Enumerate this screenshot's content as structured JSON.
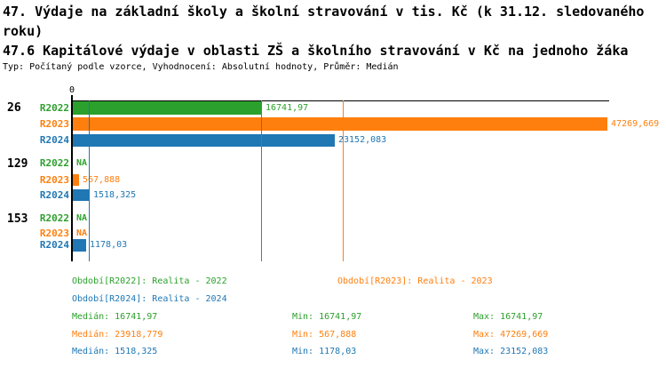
{
  "header": {
    "title": "47. Výdaje na základní školy a školní stravování v tis. Kč (k 31.12. sledovaného roku)",
    "subtitle": "47.6 Kapitálové výdaje v oblasti ZŠ a školního stravování v Kč na jednoho žáka",
    "meta": "Typ: Počítaný podle vzorce, Vyhodnocení: Absolutní hodnoty, Průměr: Medián"
  },
  "chart_data": {
    "type": "bar",
    "orientation": "horizontal",
    "title": "47.6 Kapitálové výdaje v oblasti ZŠ a školního stravování v Kč na jednoho žáka",
    "x_axis": {
      "origin_label": "0",
      "xlim": [
        0,
        47500
      ],
      "grid": false
    },
    "series_colors": {
      "R2022": "#2ca02c",
      "R2023": "#ff7f0e",
      "R2024": "#1f77b4"
    },
    "groups": [
      {
        "label": "26",
        "bars": [
          {
            "period": "R2022",
            "value": 16741.97,
            "value_label": "16741,97"
          },
          {
            "period": "R2023",
            "value": 47269.669,
            "value_label": "47269,669"
          },
          {
            "period": "R2024",
            "value": 23152.083,
            "value_label": "23152,083"
          }
        ]
      },
      {
        "label": "129",
        "bars": [
          {
            "period": "R2022",
            "value": null,
            "value_label": "NA"
          },
          {
            "period": "R2023",
            "value": 567.888,
            "value_label": "567,888"
          },
          {
            "period": "R2024",
            "value": 1518.325,
            "value_label": "1518,325"
          }
        ]
      },
      {
        "label": "153",
        "bars": [
          {
            "period": "R2022",
            "value": null,
            "value_label": "NA"
          },
          {
            "period": "R2023",
            "value": null,
            "value_label": "NA"
          },
          {
            "period": "R2024",
            "value": 1178.03,
            "value_label": "1178,03"
          }
        ]
      }
    ],
    "median_lines": [
      {
        "period": "R2022",
        "value": 16741.97
      },
      {
        "period": "R2023",
        "value": 23918.779
      },
      {
        "period": "R2024",
        "value": 1518.325
      }
    ],
    "legend": [
      {
        "period": "R2022",
        "label": "Období[R2022]: Realita - 2022"
      },
      {
        "period": "R2023",
        "label": "Období[R2023]: Realita - 2023"
      },
      {
        "period": "R2024",
        "label": "Období[R2024]: Realita - 2024"
      }
    ],
    "stats": [
      {
        "period": "R2022",
        "median": "Medián: 16741,97",
        "min": "Min: 16741,97",
        "max": "Max: 16741,97"
      },
      {
        "period": "R2023",
        "median": "Medián: 23918,779",
        "min": "Min: 567,888",
        "max": "Max: 47269,669"
      },
      {
        "period": "R2024",
        "median": "Medián: 1518,325",
        "min": "Min: 1178,03",
        "max": "Max: 23152,083"
      }
    ]
  }
}
